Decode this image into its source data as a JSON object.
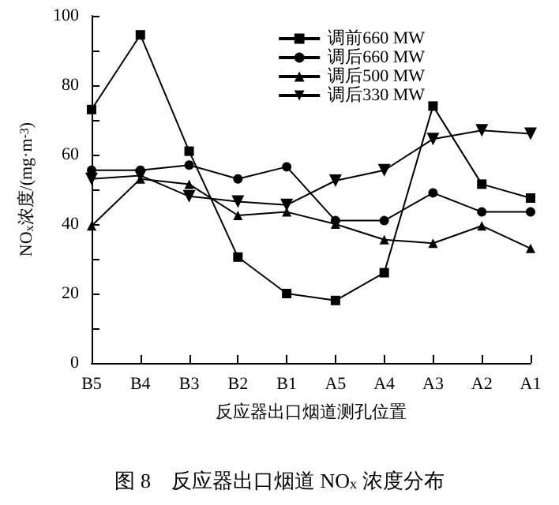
{
  "chart_data": {
    "type": "line",
    "title": "图 8　反应器出口烟道 NO$_{x}$ 浓度分布",
    "xlabel": "反应器出口烟道测孔位置",
    "ylabel": "NO$_{x}$浓度/(mg·m$^{-3}$)",
    "categories": [
      "B5",
      "B4",
      "B3",
      "B2",
      "B1",
      "A5",
      "A4",
      "A3",
      "A2",
      "A1"
    ],
    "series": [
      {
        "name": "调前660 MW",
        "color": "#000000",
        "marker": "square",
        "values": [
          73,
          94.5,
          61,
          30.5,
          20,
          18,
          26,
          74,
          51.5,
          47.5
        ]
      },
      {
        "name": "调后660 MW",
        "color": "#000000",
        "marker": "circle",
        "values": [
          55.5,
          55.5,
          57,
          53,
          56.5,
          41,
          41,
          49,
          43.5,
          43.5
        ]
      },
      {
        "name": "调后500 MW",
        "color": "#000000",
        "marker": "triangle",
        "values": [
          39.5,
          53,
          51.5,
          42.5,
          43.5,
          40,
          35.5,
          34.5,
          39.5,
          33
        ]
      },
      {
        "name": "调后330 MW",
        "color": "#000000",
        "marker": "triangle-down",
        "values": [
          53,
          54,
          48,
          46.5,
          45.5,
          52.5,
          55.5,
          64.5,
          67,
          66
        ]
      }
    ],
    "ylim": [
      0,
      100
    ],
    "yticks": [
      0,
      {
        "value": 10,
        "label": null
      },
      20,
      {
        "value": 30,
        "label": null
      },
      40,
      {
        "value": 50,
        "label": null
      },
      60,
      {
        "value": 70,
        "label": null
      },
      80,
      {
        "value": 90,
        "label": null
      },
      100
    ],
    "grid": false,
    "legend": "top right",
    "line_style": "solid"
  }
}
